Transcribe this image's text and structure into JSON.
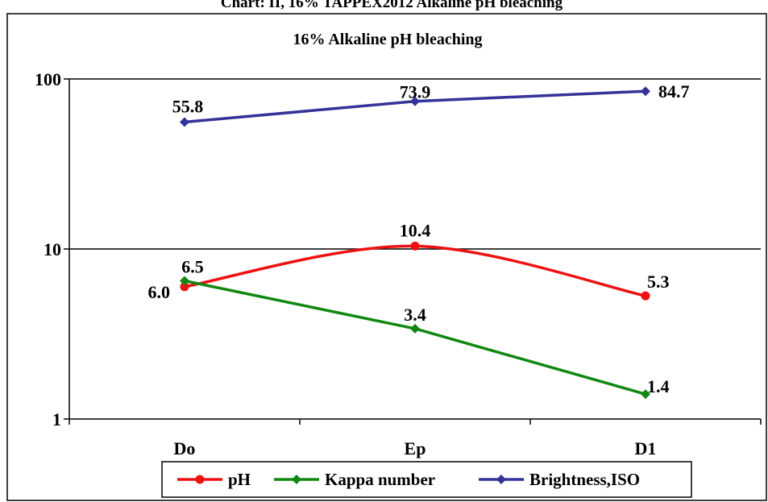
{
  "page_title": "Chart: II, 16% TAPPEX2012 Alkaline pH bleaching",
  "colors": {
    "ph": "#ee1111",
    "kappa": "#118811",
    "brightness": "#333399"
  },
  "chart_data": {
    "type": "line",
    "title": "16% Alkaline pH bleaching",
    "xlabel": "",
    "ylabel": "",
    "y_scale": "log",
    "ylim": [
      1,
      100
    ],
    "y_ticks": [
      "1",
      "10",
      "100"
    ],
    "grid": "horizontal major gridlines",
    "legend_position": "bottom",
    "categories": [
      "Do",
      "Ep",
      "D1"
    ],
    "series": [
      {
        "key": "ph",
        "name": "pH",
        "values": [
          6.0,
          10.4,
          5.3
        ],
        "labels": [
          "6.0",
          "10.4",
          "5.3"
        ],
        "marker": "circle",
        "smooth": true
      },
      {
        "key": "kappa",
        "name": "Kappa number",
        "values": [
          6.5,
          3.4,
          1.4
        ],
        "labels": [
          "6.5",
          "3.4",
          "1.4"
        ],
        "marker": "diamond",
        "smooth": false
      },
      {
        "key": "brightness",
        "name": "Brightness,ISO",
        "values": [
          55.8,
          73.9,
          84.7
        ],
        "labels": [
          "55.8",
          "73.9",
          "84.7"
        ],
        "marker": "diamond",
        "smooth": false
      }
    ]
  }
}
